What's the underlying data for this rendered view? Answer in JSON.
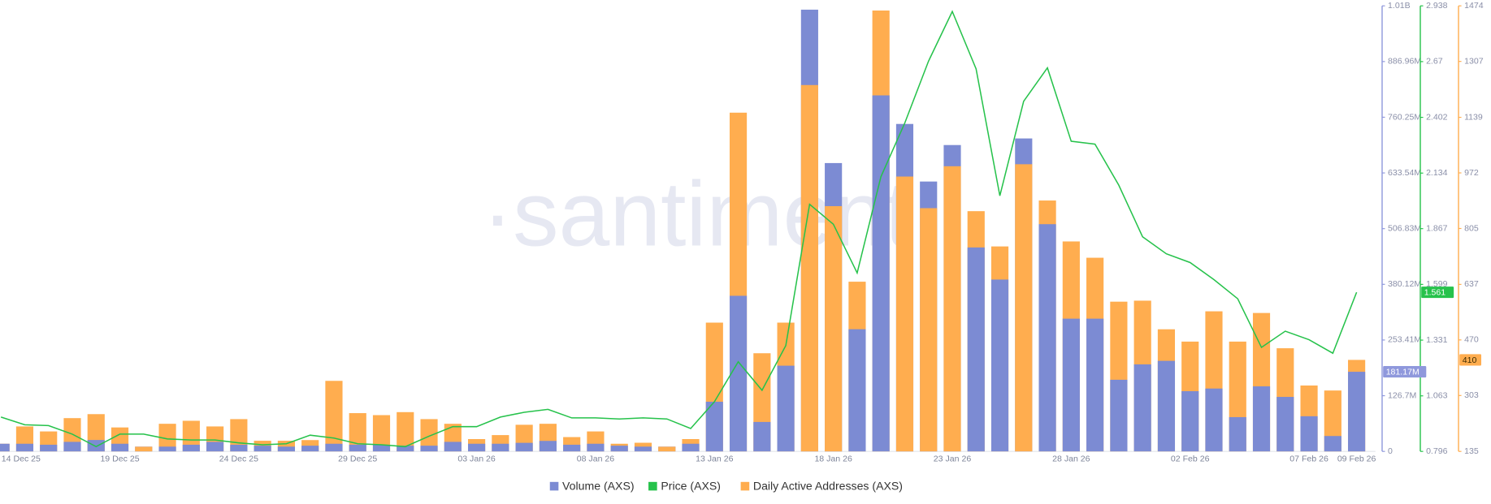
{
  "chart_data": {
    "type": "bar",
    "watermark": "·santiment·",
    "categories": [
      "14 Dec 25",
      null,
      null,
      null,
      null,
      "19 Dec 25",
      null,
      null,
      null,
      null,
      "24 Dec 25",
      null,
      null,
      null,
      null,
      "29 Dec 25",
      null,
      null,
      null,
      null,
      "03 Jan 26",
      null,
      null,
      null,
      null,
      "08 Jan 26",
      null,
      null,
      null,
      null,
      "13 Jan 26",
      null,
      null,
      null,
      null,
      "18 Jan 26",
      null,
      null,
      null,
      null,
      "23 Jan 26",
      null,
      null,
      null,
      null,
      "28 Jan 26",
      null,
      null,
      null,
      null,
      "02 Feb 26",
      null,
      null,
      null,
      null,
      "07 Feb 26",
      null,
      "09 Feb 26"
    ],
    "series": [
      {
        "name": "Volume (AXS)",
        "type": "bar",
        "axis": "y",
        "color": "#7c8bd3",
        "values": [
          17400000,
          17400000,
          15200000,
          21700000,
          26000000,
          17400000,
          10900000,
          10900000,
          15200000,
          21700000,
          15200000,
          13000000,
          10900000,
          13000000,
          17400000,
          15200000,
          15200000,
          13000000,
          13000000,
          21700000,
          17400000,
          17400000,
          19500000,
          23900000,
          15200000,
          17400000,
          13000000,
          10900000,
          10900000,
          17400000,
          113000000,
          354000000,
          67000000,
          195000000,
          1005000000,
          656000000,
          278000000,
          810000000,
          745000000,
          614000000,
          697000000,
          464000000,
          391000000,
          712000000,
          517000000,
          302000000,
          302000000,
          163000000,
          198000000,
          206000000,
          137000000,
          143000000,
          78000000,
          148000000,
          124000000,
          80000000,
          35000000,
          181170000
        ]
      },
      {
        "name": "Price (AXS)",
        "type": "line",
        "axis": "y2",
        "color": "#26c24b",
        "values": [
          0.961,
          0.924,
          0.92,
          0.879,
          0.819,
          0.879,
          0.879,
          0.856,
          0.851,
          0.851,
          0.837,
          0.828,
          0.833,
          0.874,
          0.86,
          0.833,
          0.828,
          0.819,
          0.869,
          0.915,
          0.915,
          0.961,
          0.984,
          0.998,
          0.957,
          0.957,
          0.952,
          0.957,
          0.952,
          0.906,
          1.035,
          1.227,
          1.09,
          1.305,
          1.984,
          1.888,
          1.654,
          2.117,
          2.374,
          2.672,
          2.911,
          2.635,
          2.025,
          2.479,
          2.64,
          2.287,
          2.273,
          2.076,
          1.828,
          1.746,
          1.704,
          1.622,
          1.53,
          1.296,
          1.374,
          1.333,
          1.268,
          1.561
        ]
      },
      {
        "name": "Daily Active Addresses (AXS)",
        "type": "bar",
        "axis": "y3",
        "color": "#ffad4f",
        "values": [
          158,
          210,
          195,
          235,
          247,
          207,
          149,
          218,
          227,
          210,
          232,
          167,
          167,
          169,
          347,
          250,
          244,
          253,
          232,
          218,
          172,
          184,
          215,
          218,
          178,
          195,
          158,
          161,
          149,
          172,
          522,
          1153,
          430,
          522,
          1236,
          872,
          645,
          1460,
          961,
          866,
          992,
          857,
          751,
          998,
          889,
          766,
          717,
          585,
          588,
          502,
          465,
          556,
          465,
          551,
          445,
          333,
          318,
          410
        ]
      }
    ],
    "ylim": [
      0,
      1013670000
    ],
    "yticks": [
      0,
      {
        "value": 126700000,
        "label": "126.7M"
      },
      {
        "value": 253410000,
        "label": "253.41M"
      },
      {
        "value": 380120000,
        "label": "380.12M"
      },
      {
        "value": 506830000,
        "label": "506.83M"
      },
      {
        "value": 633540000,
        "label": "633.54M"
      },
      {
        "value": 760250000,
        "label": "760.25M"
      },
      {
        "value": 886960000,
        "label": "886.96M"
      },
      {
        "value": 1013670000,
        "label": "1.01B"
      }
    ],
    "y2lim": [
      0.796,
      2.938
    ],
    "y2ticks": [
      0.796,
      1.063,
      1.331,
      1.599,
      1.867,
      2.134,
      2.402,
      2.67,
      2.938
    ],
    "y3lim": [
      135,
      1474
    ],
    "y3ticks": [
      135,
      303,
      470,
      637,
      805,
      972,
      1139,
      1307,
      1474
    ],
    "annotations": [
      {
        "text": "181.17M",
        "value": 181170000,
        "axis": "y"
      },
      {
        "text": "1.561",
        "value": 1.561,
        "axis": "y2"
      },
      {
        "text": "410",
        "value": 410,
        "axis": "y3"
      }
    ],
    "legend": "bottom"
  }
}
